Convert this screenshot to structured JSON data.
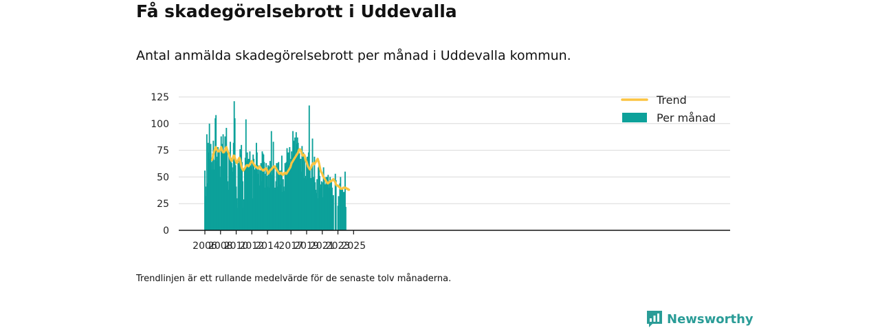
{
  "title": "Få skadegörelsebrott i Uddevalla",
  "subtitle": "Antal anmälda skadegörelsebrott per månad i Uddevalla kommun.",
  "note": "Trendlinjen är ett rullande medelvärde för de senaste tolv månaderna.",
  "brand": "Newsworthy",
  "colors": {
    "bar": "#0da19a",
    "trend": "#fbc441",
    "brand": "#2a9c97"
  },
  "chart_data": {
    "type": "bar",
    "x_start": "2006-01",
    "x_end": "2025-02",
    "x_ticks": [
      "2006",
      "2008",
      "2010",
      "2012",
      "2014",
      "2017",
      "2019",
      "2021",
      "2023",
      "2025"
    ],
    "y_ticks": [
      "0",
      "25",
      "50",
      "75",
      "100",
      "125"
    ],
    "ylim": [
      0,
      125
    ],
    "grid": true,
    "legend_position": "top-right",
    "series": [
      {
        "name": "Per månad",
        "type": "bar",
        "values": [
          56,
          41,
          32,
          90,
          44,
          82,
          73,
          100,
          67,
          81,
          64,
          57,
          72,
          84,
          57,
          66,
          105,
          108,
          65,
          69,
          78,
          73,
          75,
          60,
          50,
          88,
          74,
          81,
          90,
          58,
          75,
          88,
          72,
          96,
          73,
          46,
          38,
          71,
          65,
          83,
          68,
          63,
          59,
          55,
          82,
          121,
          105,
          61,
          41,
          30,
          21,
          63,
          63,
          66,
          76,
          71,
          80,
          64,
          46,
          21,
          29,
          57,
          68,
          104,
          65,
          73,
          66,
          67,
          60,
          74,
          61,
          59,
          63,
          30,
          71,
          67,
          57,
          56,
          61,
          82,
          73,
          61,
          53,
          57,
          42,
          56,
          63,
          46,
          74,
          72,
          71,
          64,
          40,
          53,
          63,
          51,
          41,
          61,
          60,
          40,
          65,
          59,
          93,
          52,
          59,
          83,
          59,
          38,
          40,
          46,
          63,
          41,
          63,
          64,
          56,
          43,
          56,
          43,
          70,
          36,
          48,
          41,
          37,
          63,
          60,
          64,
          77,
          57,
          73,
          63,
          78,
          60,
          67,
          74,
          70,
          93,
          84,
          83,
          87,
          68,
          92,
          81,
          87,
          82,
          74,
          72,
          59,
          67,
          55,
          79,
          68,
          73,
          49,
          70,
          51,
          48,
          64,
          69,
          58,
          73,
          117,
          59,
          49,
          49,
          62,
          86,
          50,
          48,
          69,
          45,
          38,
          35,
          48,
          30,
          59,
          65,
          51,
          40,
          43,
          46,
          45,
          31,
          59,
          49,
          43,
          43,
          50,
          45,
          50,
          52,
          40,
          44,
          50,
          38,
          47,
          40,
          29,
          33,
          0,
          0,
          53,
          47,
          0,
          0,
          23,
          32,
          0,
          44,
          50,
          39,
          38,
          39,
          35,
          36,
          35,
          55,
          22
        ]
      },
      {
        "name": "Trend",
        "type": "line",
        "start": "2006-12",
        "values": [
          66,
          68,
          71,
          73,
          75,
          77,
          78,
          76,
          75,
          74,
          74,
          74,
          75,
          76,
          78,
          76,
          74,
          73,
          73,
          74,
          75,
          77,
          78,
          76,
          74,
          73,
          71,
          69,
          67,
          66,
          65,
          66,
          68,
          70,
          70,
          68,
          66,
          64,
          63,
          64,
          66,
          67,
          68,
          66,
          63,
          60,
          58,
          57,
          56,
          57,
          58,
          59,
          60,
          61,
          61,
          61,
          60,
          61,
          62,
          63,
          64,
          65,
          64,
          63,
          62,
          61,
          60,
          60,
          59,
          59,
          58,
          58,
          59,
          60,
          59,
          58,
          57,
          57,
          56,
          56,
          57,
          57,
          58,
          58,
          57,
          55,
          53,
          54,
          55,
          56,
          57,
          57,
          58,
          59,
          59,
          60,
          60,
          59,
          58,
          57,
          56,
          55,
          54,
          53,
          53,
          54,
          54,
          53,
          52,
          52,
          53,
          54,
          54,
          53,
          53,
          54,
          55,
          56,
          57,
          58,
          59,
          61,
          63,
          64,
          65,
          66,
          67,
          68,
          69,
          70,
          71,
          72,
          73,
          75,
          76,
          76,
          75,
          73,
          71,
          70,
          71,
          71,
          70,
          67,
          65,
          64,
          62,
          60,
          59,
          58,
          57,
          58,
          59,
          61,
          62,
          63,
          63,
          62,
          63,
          64,
          65,
          66,
          67,
          65,
          63,
          60,
          57,
          55,
          54,
          53,
          51,
          50,
          49,
          48,
          47,
          46,
          45,
          44,
          44,
          45,
          45,
          46,
          46,
          46,
          47,
          47,
          48,
          47,
          46,
          45,
          43,
          42,
          42,
          42,
          41,
          41,
          40,
          39,
          39,
          39,
          39,
          40,
          40,
          40,
          40,
          40,
          39,
          39,
          39,
          38,
          38
        ]
      }
    ]
  }
}
